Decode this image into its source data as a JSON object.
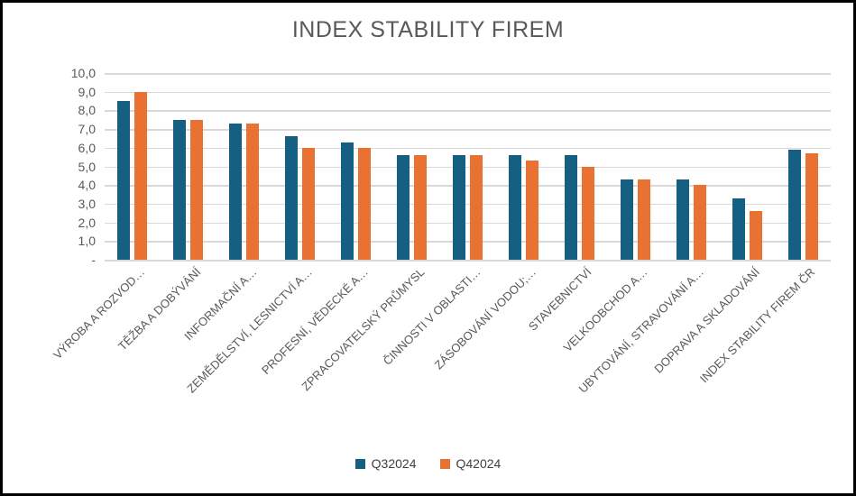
{
  "chart_data": {
    "type": "bar",
    "title": "INDEX STABILITY FIREM",
    "categories": [
      "VÝROBA A ROZVOD…",
      "TĚŽBA A DOBÝVÁNÍ",
      "INFORMAČNÍ A…",
      "ZEMĚDĚLSTVÍ, LESNICTVÍ A…",
      "PROFESNÍ, VĚDECKÉ A…",
      "ZPRACOVATELSKÝ PRŮMYSL",
      "ČINNOSTI V OBLASTI…",
      "ZÁSOBOVÁNÍ VODOU;…",
      "STAVEBNICTVÍ",
      "VELKOOBCHOD A…",
      "UBYTOVÁNÍ, STRAVOVÁNÍ A…",
      "DOPRAVA A SKLADOVÁNÍ",
      "INDEX STABILITY FIREM ČR"
    ],
    "series": [
      {
        "name": "Q32024",
        "color": "#156082",
        "values": [
          8.5,
          7.5,
          7.3,
          6.6,
          6.3,
          5.6,
          5.6,
          5.6,
          5.6,
          4.3,
          4.3,
          3.3,
          5.9
        ]
      },
      {
        "name": "Q42024",
        "color": "#E97132",
        "values": [
          9.0,
          7.5,
          7.3,
          6.0,
          6.0,
          5.6,
          5.6,
          5.3,
          5.0,
          4.3,
          4.0,
          2.6,
          5.7
        ]
      }
    ],
    "ylim": [
      0,
      10
    ],
    "ytick_labels": [
      "10,0",
      "9,0",
      "8,0",
      "7,0",
      "6,0",
      "5,0",
      "4,0",
      "3,0",
      "2,0",
      "1,0",
      "-"
    ],
    "grid": true,
    "gridline_color": "#D9D9D9",
    "text_color": "#595959",
    "legend_position": "bottom"
  }
}
